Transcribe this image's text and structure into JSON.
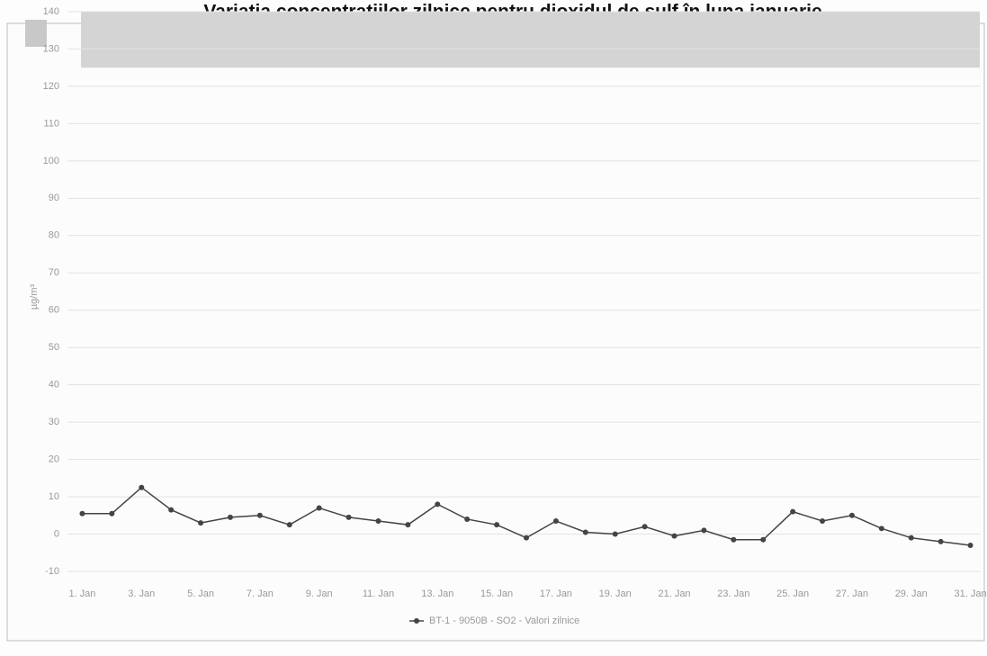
{
  "chart_data": {
    "type": "line",
    "title": "Variația concentrațiilor zilnice pentru dioxidul de sulf în luna ianuarie",
    "y_label": "µg/m³",
    "categories": [
      "1. Jan",
      null,
      "3. Jan",
      null,
      "5. Jan",
      null,
      "7. Jan",
      null,
      "9. Jan",
      null,
      "11. Jan",
      null,
      "13. Jan",
      null,
      "15. Jan",
      null,
      "17. Jan",
      null,
      "19. Jan",
      null,
      "21. Jan",
      null,
      "23. Jan",
      null,
      "25. Jan",
      null,
      "27. Jan",
      null,
      "29. Jan",
      null,
      "31. Jan"
    ],
    "series": [
      {
        "name": "BT-1 - 9050B - SO2 - Valori zilnice",
        "color": "#444444",
        "values": [
          5.5,
          5.5,
          12.5,
          6.5,
          3,
          4.5,
          5,
          2.5,
          7,
          4.5,
          3.5,
          2.5,
          8,
          4,
          2.5,
          -1,
          3.5,
          0.5,
          0,
          2,
          -0.5,
          1,
          -1.5,
          -1.5,
          6,
          3.5,
          5,
          1.5,
          -1,
          -2,
          -3
        ]
      }
    ],
    "ylim": [
      -10,
      140
    ],
    "yticks": [
      -10,
      0,
      10,
      20,
      30,
      40,
      50,
      60,
      70,
      80,
      90,
      100,
      110,
      120,
      130,
      140
    ],
    "plot_band": {
      "from": 125,
      "to": 140,
      "color": "#d4d4d4"
    },
    "grid": true,
    "legend": "bottom"
  }
}
